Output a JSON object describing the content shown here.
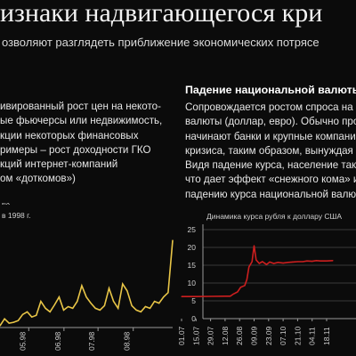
{
  "title": "изнаки надвигающегося кри",
  "subtitle": "озволяют разглядеть приближение экономических потрясе",
  "left_column": {
    "lines": [
      "ивированный рост цен на некото-",
      "ые фьючерсы или недвижимость,",
      "кции некоторых финансовых",
      "римеры – рост доходности ГКО",
      "кций интернет-компаний",
      "ом «доткомов»)"
    ]
  },
  "right_column": {
    "heading": "Падение национальной валюты",
    "lines": [
      "Сопровождается ростом спроса на",
      "валюты (доллар, евро). Обычно про",
      "начинают банки и крупные компани",
      "кризиса, таким образом, вынуждая",
      "Видя падение курса, население так",
      "что дает эффект «снежного кома» и",
      "падению курса национальной валю"
    ]
  },
  "chart_data": [
    {
      "type": "line",
      "title": "их",
      "subtitle": "в 1998 г.",
      "color": "#e8c547",
      "x_ticks": [
        "05.98",
        "06.98",
        "07.98",
        "08.98"
      ],
      "x_range": [
        "1998-04-01",
        "1998-08-31"
      ],
      "x": [
        "1998-04-01",
        "1998-04-05",
        "1998-04-09",
        "1998-04-13",
        "1998-04-17",
        "1998-04-21",
        "1998-04-25",
        "1998-04-29",
        "1998-05-03",
        "1998-05-07",
        "1998-05-11",
        "1998-05-15",
        "1998-05-19",
        "1998-05-23",
        "1998-05-27",
        "1998-05-31",
        "1998-06-04",
        "1998-06-08",
        "1998-06-12",
        "1998-06-16",
        "1998-06-20",
        "1998-06-24",
        "1998-06-28",
        "1998-07-02",
        "1998-07-06",
        "1998-07-10",
        "1998-07-14",
        "1998-07-18",
        "1998-07-22",
        "1998-07-26",
        "1998-07-30",
        "1998-08-03",
        "1998-08-07",
        "1998-08-11",
        "1998-08-15",
        "1998-08-19",
        "1998-08-23",
        "1998-08-27",
        "1998-08-31"
      ],
      "y": [
        0.02,
        0.1,
        0.05,
        0.06,
        0.08,
        0.15,
        0.18,
        0.12,
        0.14,
        0.3,
        0.22,
        0.18,
        0.26,
        0.35,
        0.2,
        0.24,
        0.22,
        0.3,
        0.48,
        0.35,
        0.28,
        0.22,
        0.2,
        0.25,
        0.45,
        0.3,
        0.22,
        0.5,
        0.42,
        0.25,
        0.2,
        0.18,
        0.24,
        0.22,
        0.3,
        0.28,
        0.35,
        0.4,
        1.0
      ]
    },
    {
      "type": "line",
      "title": "Динамика курса рубля к доллару США",
      "color": "#cc1f1f",
      "x_ticks": [
        "01.07",
        "15.07",
        "29.07",
        "12.08",
        "26.08",
        "09.09",
        "23.09",
        "07.10",
        "21.10",
        "04.11",
        "18.11"
      ],
      "y_ticks": [
        0,
        5,
        10,
        15,
        20,
        25
      ],
      "ylim": [
        0,
        25
      ],
      "grid": true,
      "x": [
        "1998-07-01",
        "1998-07-15",
        "1998-07-29",
        "1998-08-12",
        "1998-08-17",
        "1998-08-20",
        "1998-08-24",
        "1998-08-27",
        "1998-08-31",
        "1998-09-02",
        "1998-09-04",
        "1998-09-07",
        "1998-09-09",
        "1998-09-11",
        "1998-09-14",
        "1998-09-17",
        "1998-09-21",
        "1998-09-24",
        "1998-09-28",
        "1998-10-02",
        "1998-10-07",
        "1998-10-12",
        "1998-10-16",
        "1998-10-21",
        "1998-10-26",
        "1998-10-30",
        "1998-11-04",
        "1998-11-08",
        "1998-11-12",
        "1998-11-18",
        "1998-11-24"
      ],
      "y": [
        6.2,
        6.2,
        6.24,
        6.29,
        6.3,
        6.9,
        7.5,
        8.8,
        9.3,
        11.0,
        14.5,
        16.0,
        20.5,
        16.5,
        15.5,
        16.0,
        15.2,
        15.9,
        15.5,
        15.8,
        15.6,
        15.8,
        15.9,
        16.0,
        16.0,
        16.2,
        16.1,
        16.3,
        16.2,
        16.2,
        16.3
      ]
    }
  ]
}
